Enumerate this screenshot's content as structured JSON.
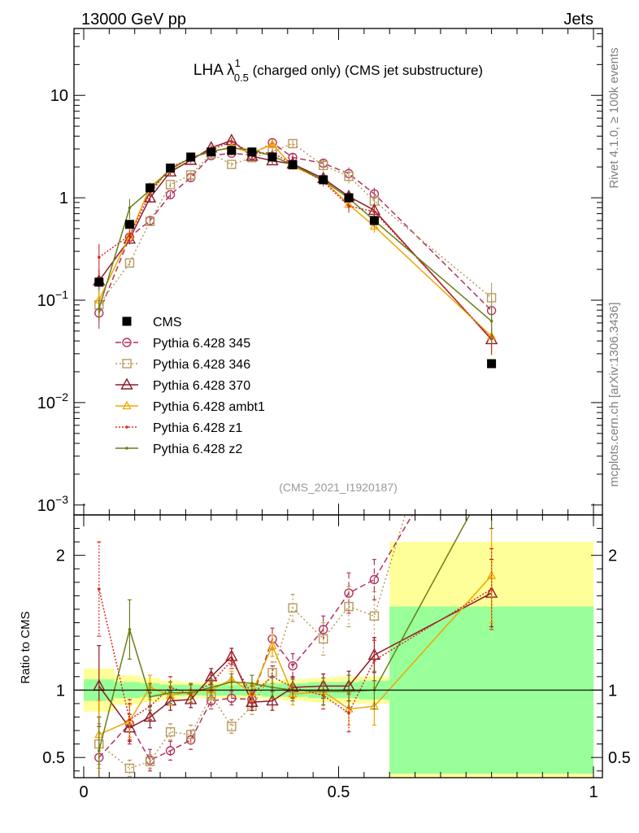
{
  "header": {
    "left": "13000 GeV pp",
    "right": "Jets"
  },
  "side": {
    "rivet": "Rivet 4.1.0, ≥ 100k events",
    "mcplots": "mcplots.cern.ch [arXiv:1306.3436]"
  },
  "chart_data": {
    "type": "line",
    "title": "LHA λ₁₀.₅ (charged only) (CMS jet substructure)",
    "title_parts": {
      "pre": "LHA λ",
      "sup": "1",
      "sub": "0.5",
      "post": " (charged only) (CMS jet substructure)"
    },
    "analysis_id": "(CMS_2021_I1920187)",
    "xlim": [
      0,
      1
    ],
    "main": {
      "yscale": "log",
      "ylim": [
        0.0008,
        45
      ]
    },
    "ratio": {
      "ylabel": "Ratio to CMS",
      "ylim": [
        0.35,
        2.3
      ]
    },
    "x_ticks": [
      {
        "v": 0,
        "label": "0"
      },
      {
        "v": 0.5,
        "label": "0.5"
      },
      {
        "v": 1,
        "label": "1"
      }
    ],
    "main_ticks": [
      {
        "v": 10,
        "label": "10"
      },
      {
        "v": 1,
        "label": "1"
      },
      {
        "v": 0.1,
        "base": "10",
        "exp": "−1"
      },
      {
        "v": 0.01,
        "base": "10",
        "exp": "−2"
      },
      {
        "v": 0.001,
        "base": "10",
        "exp": "−3"
      }
    ],
    "ratio_ticks": [
      {
        "v": 0.5,
        "label": "0.5"
      },
      {
        "v": 1,
        "label": "1"
      },
      {
        "v": 2,
        "label": "2"
      }
    ],
    "x": [
      0.03,
      0.09,
      0.13,
      0.17,
      0.21,
      0.25,
      0.29,
      0.33,
      0.37,
      0.41,
      0.47,
      0.52,
      0.57,
      0.8
    ],
    "bins": [
      [
        0.0,
        0.06
      ],
      [
        0.06,
        0.11
      ],
      [
        0.11,
        0.15
      ],
      [
        0.15,
        0.19
      ],
      [
        0.19,
        0.23
      ],
      [
        0.23,
        0.27
      ],
      [
        0.27,
        0.31
      ],
      [
        0.31,
        0.35
      ],
      [
        0.35,
        0.39
      ],
      [
        0.39,
        0.44
      ],
      [
        0.44,
        0.49
      ],
      [
        0.49,
        0.54
      ],
      [
        0.54,
        0.6
      ],
      [
        0.6,
        1.0
      ]
    ],
    "data": {
      "name": "CMS",
      "values": [
        0.15,
        0.55,
        1.25,
        1.95,
        2.5,
        2.8,
        2.9,
        2.8,
        2.5,
        2.1,
        1.5,
        1.0,
        0.6,
        0.024
      ],
      "band_inner": [
        0.08,
        0.06,
        0.05,
        0.04,
        0.04,
        0.04,
        0.04,
        0.04,
        0.05,
        0.05,
        0.06,
        0.06,
        0.07,
        0.62
      ],
      "band_outer": [
        0.16,
        0.11,
        0.09,
        0.07,
        0.06,
        0.06,
        0.06,
        0.06,
        0.07,
        0.08,
        0.09,
        0.1,
        0.1,
        1.1
      ]
    },
    "series": [
      {
        "name": "Pythia 6.428 345",
        "color": "#b4315c",
        "marker": "circle",
        "dash": "7 4",
        "ratio": [
          0.5,
          0.75,
          0.48,
          0.55,
          0.63,
          0.92,
          0.94,
          0.93,
          1.38,
          1.18,
          1.45,
          1.72,
          1.82,
          3.3
        ],
        "err": [
          0.3,
          0.15,
          0.08,
          0.07,
          0.07,
          0.06,
          0.05,
          0.06,
          0.08,
          0.09,
          0.1,
          0.15,
          0.15,
          0.3
        ]
      },
      {
        "name": "Pythia 6.428 346",
        "color": "#b89a5a",
        "marker": "square",
        "dash": "2 3",
        "ratio": [
          0.6,
          0.42,
          0.47,
          0.69,
          0.67,
          0.96,
          0.73,
          0.88,
          1.13,
          1.61,
          1.38,
          1.62,
          1.55,
          4.4
        ],
        "err": [
          0.15,
          0.06,
          0.05,
          0.06,
          0.07,
          0.06,
          0.05,
          0.06,
          0.08,
          0.1,
          0.12,
          0.15,
          0.18,
          0.4
        ]
      },
      {
        "name": "Pythia 6.428 370",
        "color": "#8c1a28",
        "marker": "triangle",
        "dash": "",
        "ratio": [
          1.03,
          0.72,
          0.8,
          0.92,
          0.93,
          1.1,
          1.25,
          0.91,
          0.92,
          1.02,
          1.03,
          1.03,
          1.26,
          1.72
        ],
        "err": [
          0.3,
          0.1,
          0.08,
          0.07,
          0.06,
          0.06,
          0.06,
          0.06,
          0.07,
          0.08,
          0.09,
          0.11,
          0.13,
          0.25
        ]
      },
      {
        "name": "Pythia 6.428 ambt1",
        "color": "#f0a500",
        "marker": "triangle-small",
        "dash": "",
        "ratio": [
          0.67,
          0.77,
          1.02,
          0.96,
          0.99,
          1.0,
          1.08,
          0.98,
          1.33,
          0.97,
          0.99,
          0.86,
          0.88,
          1.85
        ],
        "err": [
          0.25,
          0.12,
          0.09,
          0.07,
          0.06,
          0.06,
          0.06,
          0.06,
          0.08,
          0.08,
          0.1,
          0.12,
          0.14,
          0.35
        ]
      },
      {
        "name": "Pythia 6.428 z1",
        "color": "#d62a20",
        "marker": "dot",
        "dash": "2 2",
        "ratio": [
          1.75,
          0.78,
          0.88,
          1.02,
          0.97,
          1.05,
          1.22,
          0.97,
          1.1,
          1.02,
          0.96,
          0.83,
          1.22,
          1.75
        ],
        "err": [
          0.35,
          0.15,
          0.1,
          0.08,
          0.07,
          0.06,
          0.06,
          0.06,
          0.08,
          0.08,
          0.1,
          0.14,
          0.15,
          0.3
        ]
      },
      {
        "name": "Pythia 6.428 z2",
        "color": "#6b7d18",
        "marker": "dot",
        "dash": "",
        "ratio": [
          0.55,
          1.45,
          0.95,
          0.98,
          0.98,
          1.02,
          1.06,
          1.05,
          1.02,
          1.0,
          0.99,
          0.99,
          1.0,
          2.6
        ],
        "err": [
          0.25,
          0.22,
          0.1,
          0.08,
          0.07,
          0.06,
          0.06,
          0.06,
          0.08,
          0.08,
          0.1,
          0.12,
          0.14,
          0.4
        ]
      }
    ]
  }
}
